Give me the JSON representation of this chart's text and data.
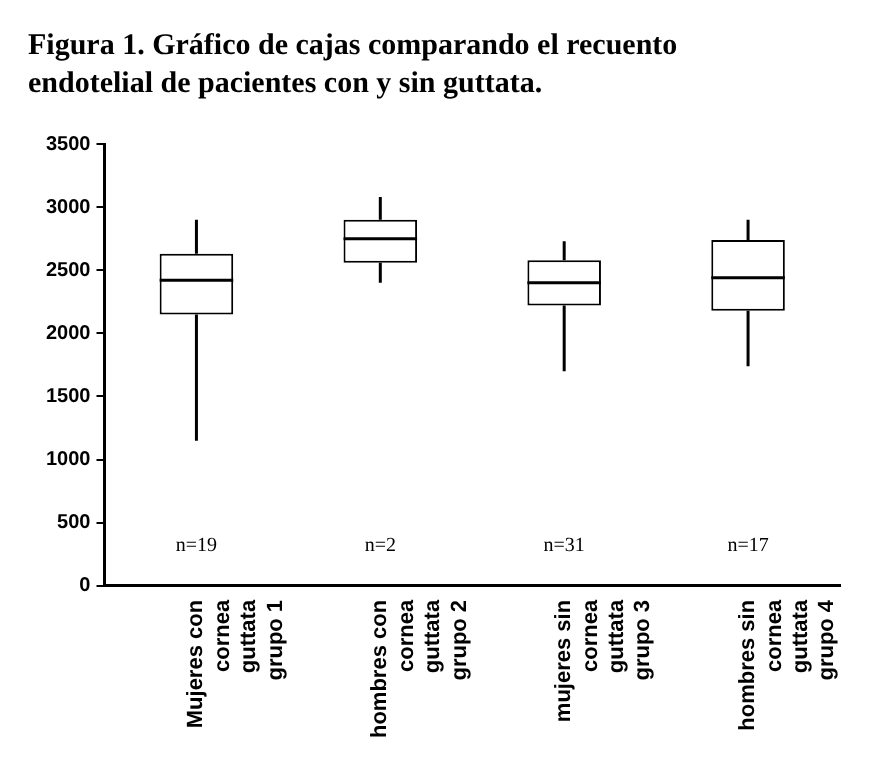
{
  "chart_data": {
    "type": "box",
    "title": "Figura 1. Gráfico de cajas comparando el recuento endotelial de pacientes con y sin guttata.",
    "categories": [
      "Mujeres con cornea guttata grupo 1",
      "hombres con cornea guttata grupo 2",
      "mujeres sin cornea guttata grupo 3",
      "hombres sin cornea guttata grupo 4"
    ],
    "boxes": [
      {
        "low": 1150,
        "q1": 2150,
        "median": 2420,
        "q3": 2630,
        "high": 2900
      },
      {
        "low": 2400,
        "q1": 2560,
        "median": 2750,
        "q3": 2900,
        "high": 3080
      },
      {
        "low": 1700,
        "q1": 2220,
        "median": 2400,
        "q3": 2580,
        "high": 2730
      },
      {
        "low": 1740,
        "q1": 2180,
        "median": 2440,
        "q3": 2740,
        "high": 2900
      }
    ],
    "ylim": [
      0,
      3500
    ],
    "yticks": [
      0,
      500,
      1000,
      1500,
      2000,
      2500,
      3000,
      3500
    ],
    "annotations": [
      "n=19",
      "n=2",
      "n=31",
      "n=17"
    ],
    "grid": false,
    "legend": false
  }
}
